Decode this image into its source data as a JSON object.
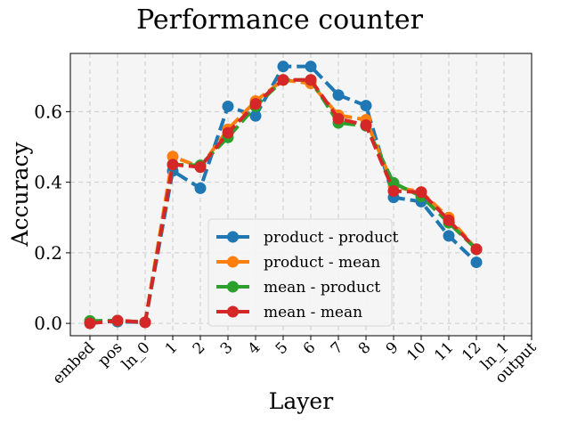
{
  "chart_data": {
    "type": "line",
    "title": "Performance counter",
    "xlabel": "Layer",
    "ylabel": "Accuracy",
    "categories": [
      "embed",
      "pos",
      "ln_0",
      "1",
      "2",
      "3",
      "4",
      "5",
      "6",
      "7",
      "8",
      "9",
      "10",
      "11",
      "12",
      "ln_1",
      "output"
    ],
    "ylim": [
      -0.035,
      0.765
    ],
    "yticks": [
      "0.0",
      "0.2",
      "0.4",
      "0.6"
    ],
    "ytick_values": [
      0.0,
      0.2,
      0.4,
      0.6
    ],
    "grid": true,
    "legend": "bottom-center",
    "series": [
      {
        "name": "product - product",
        "color": "#1f77b4",
        "values": [
          0.005,
          0.005,
          0.003,
          0.432,
          0.383,
          0.615,
          0.588,
          0.728,
          0.728,
          0.647,
          0.617,
          0.357,
          0.345,
          0.248,
          0.173,
          null,
          null
        ]
      },
      {
        "name": "product - mean",
        "color": "#ff7f0e",
        "values": [
          0.003,
          0.008,
          0.003,
          0.473,
          0.443,
          0.55,
          0.63,
          0.69,
          0.68,
          0.59,
          0.577,
          0.388,
          0.372,
          0.3,
          0.21,
          null,
          null
        ]
      },
      {
        "name": "mean - product",
        "color": "#2ca02c",
        "values": [
          0.007,
          0.008,
          0.003,
          0.45,
          0.448,
          0.527,
          0.615,
          0.69,
          0.69,
          0.568,
          0.56,
          0.398,
          0.36,
          0.285,
          0.21,
          null,
          null
        ]
      },
      {
        "name": "mean - mean",
        "color": "#d62728",
        "values": [
          0.0,
          0.008,
          0.003,
          0.45,
          0.443,
          0.54,
          0.622,
          0.69,
          0.69,
          0.58,
          0.562,
          0.375,
          0.372,
          0.292,
          0.21,
          null,
          null
        ]
      }
    ]
  }
}
